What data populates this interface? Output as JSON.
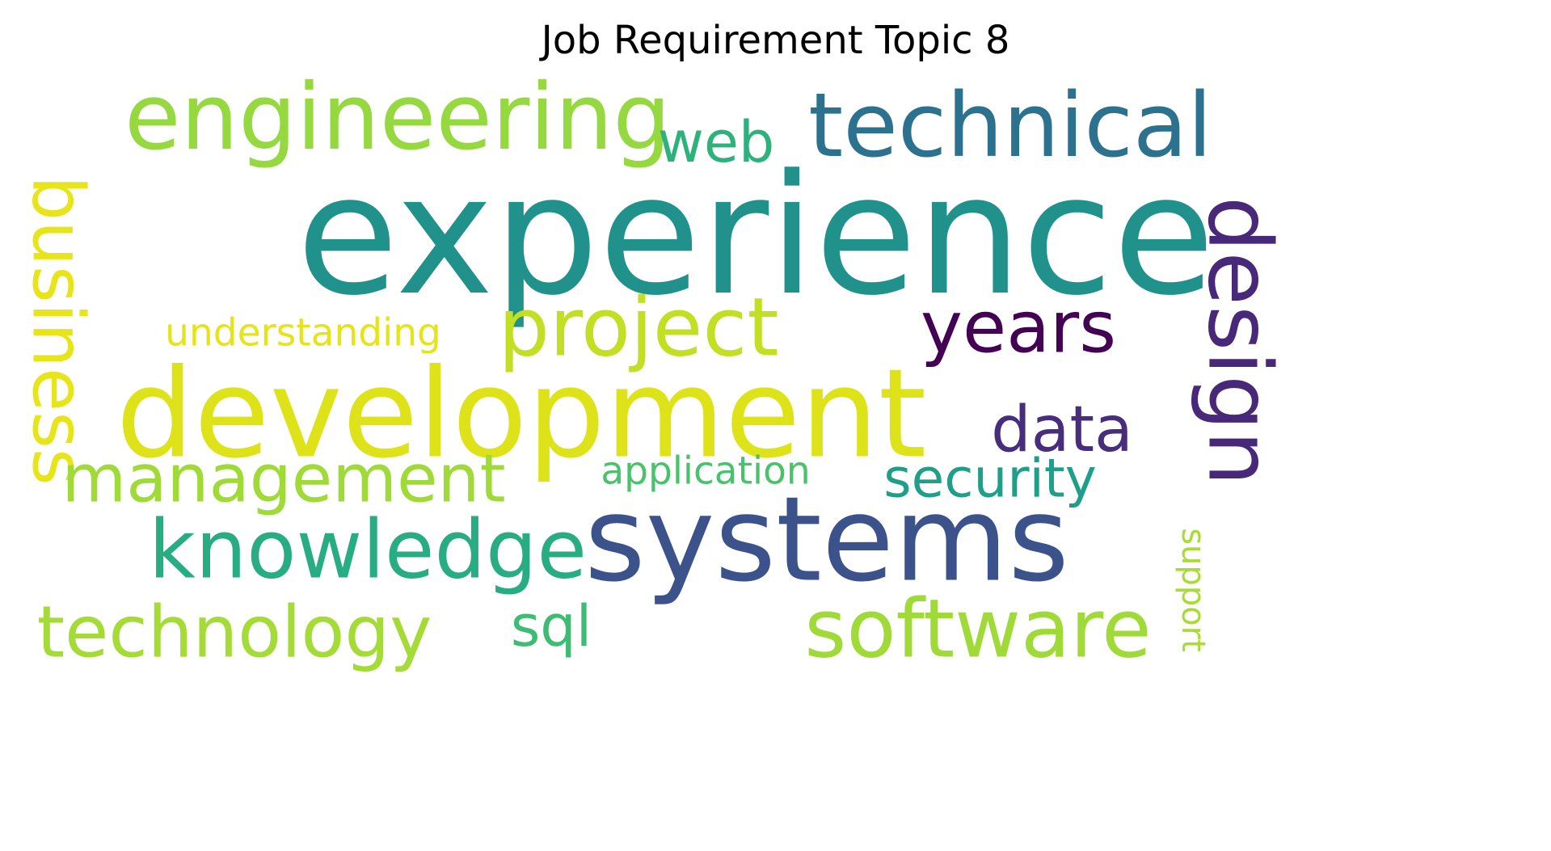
{
  "chart_data": {
    "type": "wordcloud",
    "title": "Job Requirement Topic 8",
    "words": [
      {
        "text": "experience",
        "weight": 1.0,
        "color": "#21918c",
        "rotated": false
      },
      {
        "text": "development",
        "weight": 0.78,
        "color": "#dde318",
        "rotated": false
      },
      {
        "text": "systems",
        "weight": 0.74,
        "color": "#3b528b",
        "rotated": false
      },
      {
        "text": "engineering",
        "weight": 0.58,
        "color": "#95d840",
        "rotated": false
      },
      {
        "text": "technical",
        "weight": 0.55,
        "color": "#2c728e",
        "rotated": false
      },
      {
        "text": "design",
        "weight": 0.55,
        "color": "#482878",
        "rotated": true
      },
      {
        "text": "project",
        "weight": 0.52,
        "color": "#c2df23",
        "rotated": false
      },
      {
        "text": "knowledge",
        "weight": 0.52,
        "color": "#27ad81",
        "rotated": false
      },
      {
        "text": "software",
        "weight": 0.52,
        "color": "#a0da39",
        "rotated": false
      },
      {
        "text": "business",
        "weight": 0.45,
        "color": "#e7e419",
        "rotated": true
      },
      {
        "text": "years",
        "weight": 0.45,
        "color": "#440154",
        "rotated": false
      },
      {
        "text": "technology",
        "weight": 0.45,
        "color": "#a5db36",
        "rotated": false
      },
      {
        "text": "management",
        "weight": 0.42,
        "color": "#a0da39",
        "rotated": false
      },
      {
        "text": "data",
        "weight": 0.4,
        "color": "#472d7b",
        "rotated": false
      },
      {
        "text": "web",
        "weight": 0.36,
        "color": "#2db27d",
        "rotated": false
      },
      {
        "text": "sql",
        "weight": 0.36,
        "color": "#3fbc73",
        "rotated": false
      },
      {
        "text": "security",
        "weight": 0.34,
        "color": "#1f9e89",
        "rotated": false
      },
      {
        "text": "understanding",
        "weight": 0.24,
        "color": "#e5e419",
        "rotated": false
      },
      {
        "text": "application",
        "weight": 0.24,
        "color": "#4ac16d",
        "rotated": false
      },
      {
        "text": "support",
        "weight": 0.2,
        "color": "#a8db34",
        "rotated": true
      }
    ]
  }
}
